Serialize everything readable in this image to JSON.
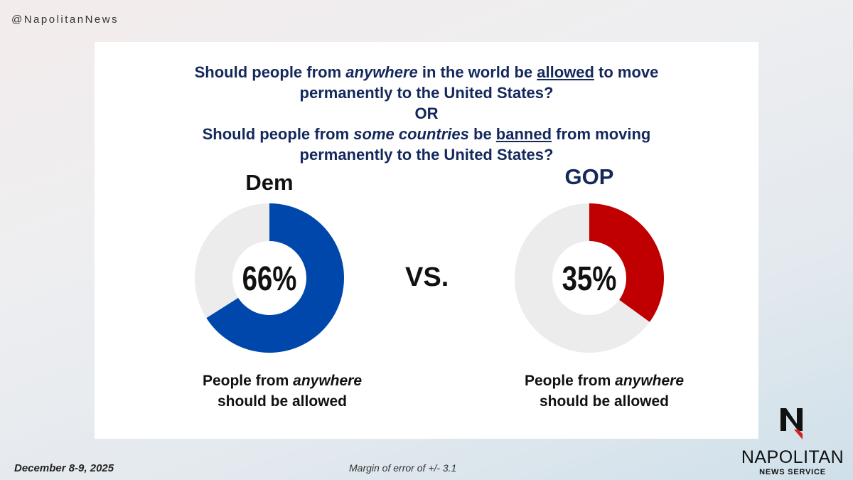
{
  "handle": "@NapolitanNews",
  "question": {
    "line1_a": "Should people from ",
    "line1_em": "anywhere",
    "line1_b": " in the world be ",
    "line1_u": "allowed",
    "line1_c": " to move",
    "line2": "permanently to the United States?",
    "or": "OR",
    "line3_a": "Should people from ",
    "line3_em": "some countries",
    "line3_b": " be ",
    "line3_u": "banned",
    "line3_c": " from moving",
    "line4": "permanently to the United States?"
  },
  "vs": "VS.",
  "footer": {
    "date": "December 8-9, 2025",
    "moe": "Margin of error of +/- 3.1"
  },
  "logo": {
    "name": "NAPOLITAN",
    "sub": "NEWS SERVICE"
  },
  "chart_data": [
    {
      "type": "pie",
      "title": "Dem",
      "value_label": "66%",
      "value": 66,
      "color": "#0047ab",
      "remainder_color": "#ececec",
      "caption_a": "People from ",
      "caption_em": "anywhere",
      "caption_b": "should be allowed"
    },
    {
      "type": "pie",
      "title": "GOP",
      "value_label": "35%",
      "value": 35,
      "color": "#c00000",
      "remainder_color": "#ececec",
      "caption_a": "People from ",
      "caption_em": "anywhere",
      "caption_b": "should be allowed"
    }
  ]
}
